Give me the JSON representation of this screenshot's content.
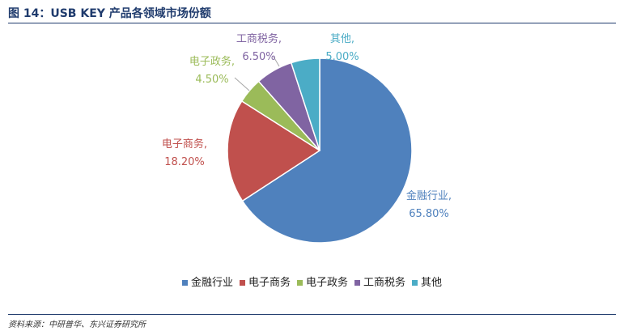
{
  "header": {
    "title": "图 14：USB KEY 产品各领域市场份额"
  },
  "chart_data": {
    "type": "pie",
    "title": "",
    "slices": [
      {
        "name": "金融行业",
        "value": 65.8,
        "label_name": "金融行业,",
        "label_value": "65.80%",
        "color": "#4f81bd"
      },
      {
        "name": "电子商务",
        "value": 18.2,
        "label_name": "电子商务,",
        "label_value": "18.20%",
        "color": "#c0504d"
      },
      {
        "name": "电子政务",
        "value": 4.5,
        "label_name": "电子政务,",
        "label_value": "4.50%",
        "color": "#9bbb59"
      },
      {
        "name": "工商税务",
        "value": 6.5,
        "label_name": "工商税务,",
        "label_value": "6.50%",
        "color": "#8064a2"
      },
      {
        "name": "其他",
        "value": 5.0,
        "label_name": "其他,",
        "label_value": "5.00%",
        "color": "#4bacc6"
      }
    ],
    "legend_position": "bottom"
  },
  "footer": {
    "source": "资料来源：中研普华、东兴证券研究所"
  }
}
